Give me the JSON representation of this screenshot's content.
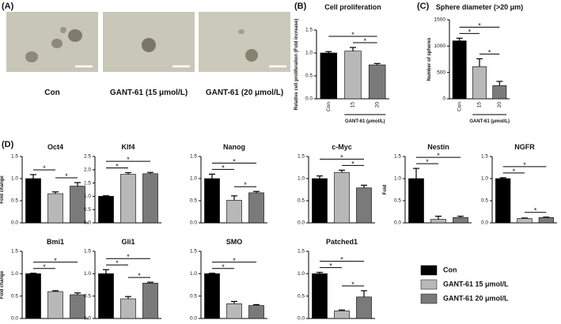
{
  "panels": [
    "(A)",
    "(B)",
    "(C)",
    "(D)"
  ],
  "images": [
    {
      "caption": "Con"
    },
    {
      "caption": "GANT-61 (15 μmol/L)"
    },
    {
      "caption": "GANT-61 (20 μmol/L)"
    }
  ],
  "legend": [
    {
      "name": "Con",
      "color": "#000000"
    },
    {
      "name": "GANT-61 15 μmol/L",
      "color": "#b8b8b8"
    },
    {
      "name": "GANT-61 20 μmol/L",
      "color": "#7a7a7a"
    }
  ],
  "chart_data": [
    {
      "type": "bar",
      "title": "Cell proliferation",
      "ylabel": "Relative cell proliferation (Fold increase)",
      "xlabel": "GANT-61 (μmol/L)",
      "categories": [
        "Con",
        "15",
        "20"
      ],
      "values": [
        1.0,
        1.04,
        0.74
      ],
      "errors": [
        0.03,
        0.08,
        0.03
      ],
      "ylim": [
        0,
        1.5
      ],
      "yticks": [
        {
          "value": 0,
          "label": "0.0"
        },
        {
          "value": 0.5,
          "label": "0.5"
        },
        {
          "value": 1,
          "label": "1.0"
        },
        {
          "value": 1.5,
          "label": "1.5"
        }
      ],
      "significance": [
        {
          "label": "*",
          "between": [
            0,
            2
          ]
        },
        {
          "label": "*",
          "between": [
            1,
            2
          ]
        }
      ]
    },
    {
      "type": "bar",
      "title": "Sphere diameter (>20 μm)",
      "ylabel": "Number of spheres",
      "xlabel": "GANT-61 (μmol/L)",
      "categories": [
        "Con",
        "15",
        "20"
      ],
      "values": [
        1100,
        610,
        250
      ],
      "errors": [
        50,
        150,
        80
      ],
      "ylim": [
        0,
        1500
      ],
      "yticks": [
        0,
        500,
        1000,
        1500
      ],
      "significance": [
        {
          "label": "*",
          "between": [
            0,
            1
          ]
        },
        {
          "label": "*",
          "between": [
            0,
            2
          ]
        },
        {
          "label": "*",
          "between": [
            1,
            2
          ]
        }
      ]
    },
    {
      "type": "bar",
      "title": "Oct4",
      "ylabel": "Fold change",
      "categories": [
        null,
        null,
        null
      ],
      "values": [
        1.0,
        0.66,
        0.83
      ],
      "errors": [
        0.09,
        0.04,
        0.08
      ],
      "ylim": [
        0,
        1.5
      ],
      "yticks": [
        {
          "value": 0,
          "label": "0.0"
        },
        {
          "value": 0.5,
          "label": "0.5"
        },
        {
          "value": 1,
          "label": "1.0"
        },
        {
          "value": 1.5,
          "label": "1.5"
        }
      ],
      "significance": [
        {
          "label": "*",
          "between": [
            0,
            1
          ]
        },
        {
          "label": "*",
          "between": [
            1,
            2
          ]
        }
      ]
    },
    {
      "type": "bar",
      "title": "Klf4",
      "categories": [
        null,
        null,
        null
      ],
      "values": [
        1.0,
        1.83,
        1.85
      ],
      "errors": [
        0.02,
        0.06,
        0.05
      ],
      "ylim": [
        0,
        2.5
      ],
      "yticks": [
        {
          "value": 0,
          "label": "0.0"
        },
        {
          "value": 0.5,
          "label": "0.5"
        },
        {
          "value": 1,
          "label": "1.0"
        },
        {
          "value": 1.5,
          "label": "1.5"
        },
        {
          "value": 2,
          "label": "2.0"
        },
        {
          "value": 2.5,
          "label": "2.5"
        }
      ],
      "significance": [
        {
          "label": "*",
          "between": [
            0,
            1
          ]
        },
        {
          "label": "*",
          "between": [
            0,
            2
          ]
        }
      ]
    },
    {
      "type": "bar",
      "title": "Nanog",
      "categories": [
        null,
        null,
        null
      ],
      "values": [
        1.0,
        0.51,
        0.68
      ],
      "errors": [
        0.1,
        0.1,
        0.03
      ],
      "ylim": [
        0,
        1.5
      ],
      "yticks": [
        {
          "value": 0,
          "label": "0.0"
        },
        {
          "value": 0.5,
          "label": "0.5"
        },
        {
          "value": 1,
          "label": "1.0"
        },
        {
          "value": 1.5,
          "label": "1.5"
        }
      ],
      "significance": [
        {
          "label": "*",
          "between": [
            0,
            1
          ]
        },
        {
          "label": "*",
          "between": [
            0,
            2
          ]
        },
        {
          "label": "*",
          "between": [
            1,
            2
          ]
        }
      ]
    },
    {
      "type": "bar",
      "title": "c-Myc",
      "categories": [
        null,
        null,
        null
      ],
      "values": [
        1.0,
        1.14,
        0.79
      ],
      "errors": [
        0.06,
        0.05,
        0.06
      ],
      "ylim": [
        0,
        1.5
      ],
      "yticks": [
        {
          "value": 0,
          "label": "0.0"
        },
        {
          "value": 0.5,
          "label": "0.5"
        },
        {
          "value": 1,
          "label": "1.0"
        },
        {
          "value": 1.5,
          "label": "1.5"
        }
      ],
      "significance": [
        {
          "label": "*",
          "between": [
            0,
            2
          ]
        },
        {
          "label": "*",
          "between": [
            1,
            2
          ]
        }
      ]
    },
    {
      "type": "bar",
      "title": "Nestin",
      "ylabel": "Fold",
      "categories": [
        null,
        null,
        null
      ],
      "values": [
        1.0,
        0.08,
        0.12
      ],
      "errors": [
        0.23,
        0.07,
        0.03
      ],
      "ylim": [
        0,
        1.5
      ],
      "yticks": [
        {
          "value": 0,
          "label": "0.0"
        },
        {
          "value": 0.5,
          "label": "0.5"
        },
        {
          "value": 1,
          "label": "1.0"
        },
        {
          "value": 1.5,
          "label": "1.5"
        }
      ],
      "significance": [
        {
          "label": "*",
          "between": [
            0,
            1
          ]
        },
        {
          "label": "*",
          "between": [
            0,
            2
          ]
        }
      ]
    },
    {
      "type": "bar",
      "title": "NGFR",
      "categories": [
        null,
        null,
        null
      ],
      "values": [
        1.0,
        0.1,
        0.12
      ],
      "errors": [
        0.02,
        0.01,
        0.01
      ],
      "ylim": [
        0,
        1.5
      ],
      "yticks": [
        {
          "value": 0,
          "label": "0.0"
        },
        {
          "value": 0.5,
          "label": "0.5"
        },
        {
          "value": 1,
          "label": "1.0"
        },
        {
          "value": 1.5,
          "label": "1.5"
        }
      ],
      "significance": [
        {
          "label": "*",
          "between": [
            0,
            1
          ]
        },
        {
          "label": "*",
          "between": [
            0,
            2
          ]
        },
        {
          "label": "*",
          "between": [
            1,
            2
          ]
        }
      ]
    },
    {
      "type": "bar",
      "title": "Bmi1",
      "ylabel": "Fold change",
      "categories": [
        null,
        null,
        null
      ],
      "values": [
        1.0,
        0.6,
        0.53
      ],
      "errors": [
        0.01,
        0.02,
        0.04
      ],
      "ylim": [
        0,
        1.5
      ],
      "yticks": [
        {
          "value": 0,
          "label": "0.0"
        },
        {
          "value": 0.5,
          "label": "0.5"
        },
        {
          "value": 1,
          "label": "1.0"
        },
        {
          "value": 1.5,
          "label": "1.5"
        }
      ],
      "significance": [
        {
          "label": "*",
          "between": [
            0,
            1
          ]
        },
        {
          "label": "*",
          "between": [
            0,
            2
          ]
        }
      ]
    },
    {
      "type": "bar",
      "title": "Gli1",
      "categories": [
        null,
        null,
        null
      ],
      "values": [
        1.0,
        0.44,
        0.79
      ],
      "errors": [
        0.09,
        0.05,
        0.02
      ],
      "ylim": [
        0,
        1.5
      ],
      "yticks": [
        {
          "value": 0,
          "label": "0.0"
        },
        {
          "value": 0.5,
          "label": "0.5"
        },
        {
          "value": 1,
          "label": "1.0"
        },
        {
          "value": 1.5,
          "label": "1.5"
        }
      ],
      "significance": [
        {
          "label": "*",
          "between": [
            0,
            1
          ]
        },
        {
          "label": "*",
          "between": [
            0,
            2
          ]
        },
        {
          "label": "*",
          "between": [
            1,
            2
          ]
        }
      ]
    },
    {
      "type": "bar",
      "title": "SMO",
      "categories": [
        null,
        null,
        null
      ],
      "values": [
        1.0,
        0.33,
        0.29
      ],
      "errors": [
        0.01,
        0.05,
        0.02
      ],
      "ylim": [
        0,
        1.5
      ],
      "yticks": [
        {
          "value": 0,
          "label": "0.0"
        },
        {
          "value": 0.5,
          "label": "0.5"
        },
        {
          "value": 1,
          "label": "1.0"
        },
        {
          "value": 1.5,
          "label": "1.5"
        }
      ],
      "significance": [
        {
          "label": "*",
          "between": [
            0,
            1
          ]
        },
        {
          "label": "*",
          "between": [
            0,
            2
          ]
        }
      ]
    },
    {
      "type": "bar",
      "title": "Patched1",
      "categories": [
        null,
        null,
        null
      ],
      "values": [
        1.0,
        0.17,
        0.48
      ],
      "errors": [
        0.03,
        0.02,
        0.14
      ],
      "ylim": [
        0,
        1.5
      ],
      "yticks": [
        {
          "value": 0,
          "label": "0.0"
        },
        {
          "value": 0.5,
          "label": "0.5"
        },
        {
          "value": 1,
          "label": "1.0"
        },
        {
          "value": 1.5,
          "label": "1.5"
        }
      ],
      "significance": [
        {
          "label": "*",
          "between": [
            0,
            1
          ]
        },
        {
          "label": "*",
          "between": [
            0,
            2
          ]
        },
        {
          "label": "*",
          "between": [
            1,
            2
          ]
        }
      ]
    }
  ]
}
